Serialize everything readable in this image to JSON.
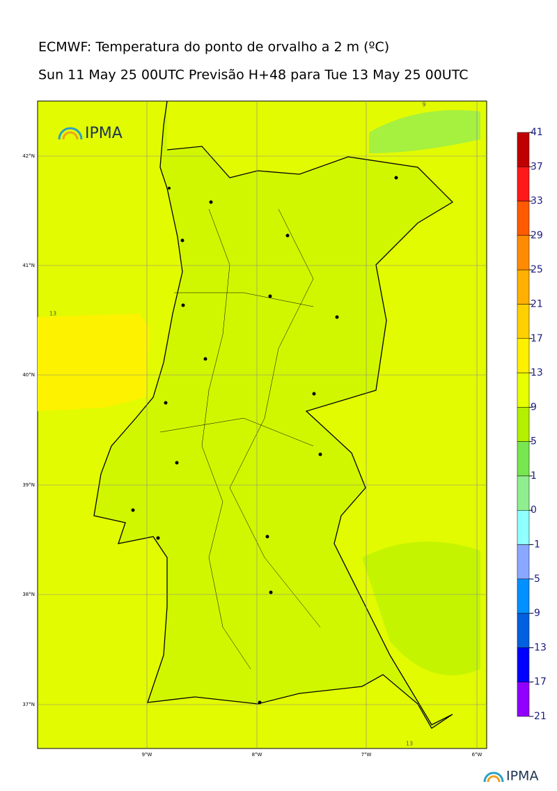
{
  "header": {
    "title": "ECMWF: Temperatura do ponto de orvalho a 2 m (ºC)",
    "subtitle": "Sun 11 May 25 00UTC Previsão H+48 para Tue 13 May 25 00UTC"
  },
  "map": {
    "lat_labels": [
      "42°N",
      "41°N",
      "40°N",
      "39°N",
      "38°N",
      "37°N"
    ],
    "lon_labels": [
      "9°W",
      "8°W",
      "7°W",
      "6°W"
    ],
    "contour_labels": [
      "13",
      "9",
      "13"
    ],
    "logo": "IPMA"
  },
  "colorbar": {
    "ticks": [
      41,
      37,
      33,
      29,
      25,
      21,
      17,
      13,
      9,
      5,
      1,
      0,
      -1,
      -5,
      -9,
      -13,
      -17,
      -21
    ],
    "colors": [
      "#c00000",
      "#ff1a1a",
      "#ff5a00",
      "#ff8c00",
      "#ffb000",
      "#ffd000",
      "#fff000",
      "#e8ff00",
      "#b4f000",
      "#78e650",
      "#90ee90",
      "#90ffff",
      "#8aa8ff",
      "#0090ff",
      "#0060e0",
      "#0000ff",
      "#9000ff"
    ]
  },
  "footer": {
    "logo": "IPMA"
  }
}
